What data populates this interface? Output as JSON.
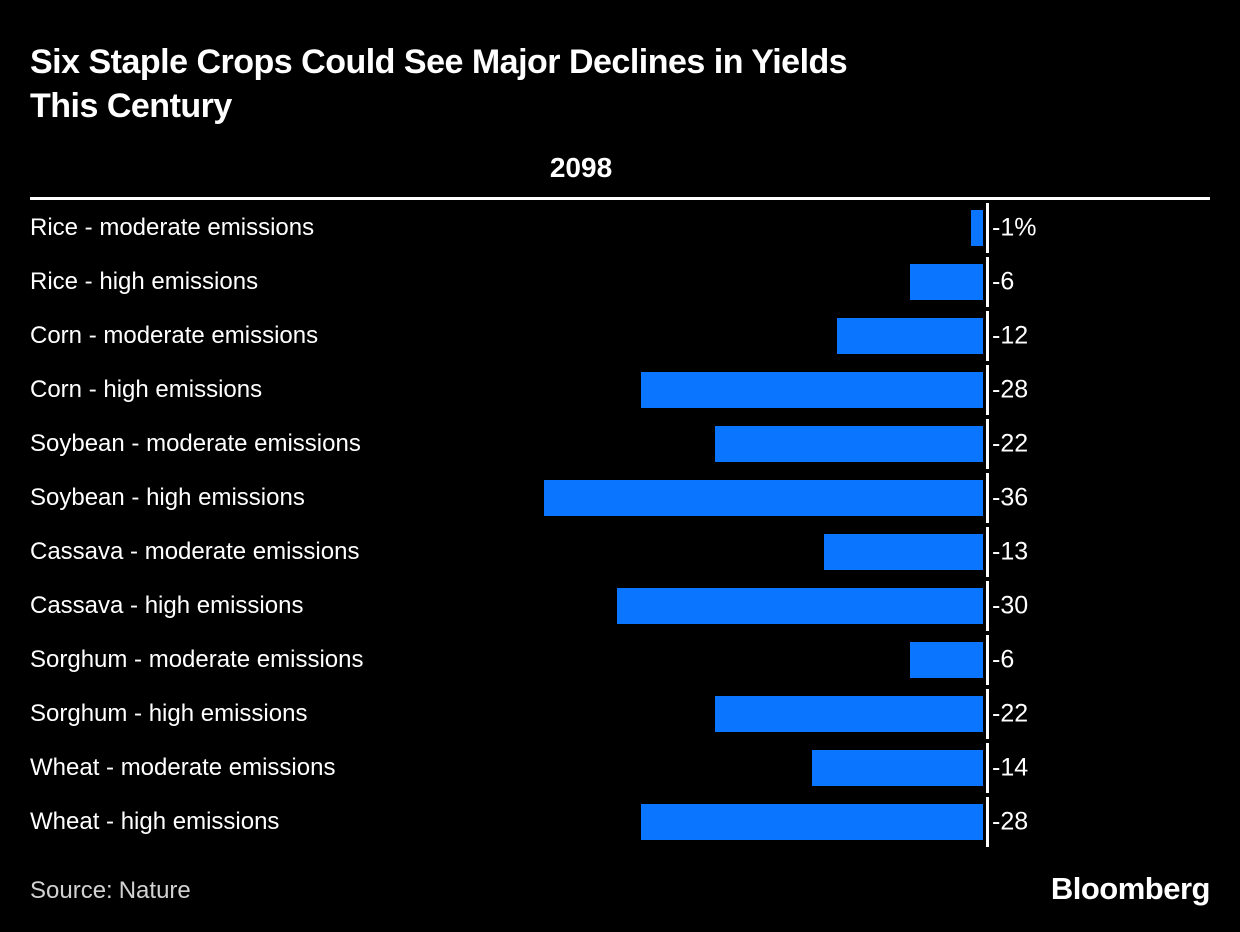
{
  "header": {
    "title_line1": "Six Staple Crops Could See Major Declines in Yields",
    "title_line2": "This Century",
    "column_header": "2098"
  },
  "footer": {
    "source_label": "Source:",
    "source_value": "Nature",
    "logo": "Bloomberg"
  },
  "colors": {
    "background": "#000000",
    "bar": "#0A76FF",
    "text": "#FFFFFF",
    "source_text": "#D2D2D2",
    "axis": "#FFFFFF"
  },
  "chart_data": {
    "type": "bar",
    "orientation": "horizontal",
    "title": "Six Staple Crops Could See Major Declines in Yields This Century",
    "column_header": "2098",
    "categories": [
      "Rice - moderate emissions",
      "Rice - high emissions",
      "Corn - moderate emissions",
      "Corn - high emissions",
      "Soybean - moderate emissions",
      "Soybean - high emissions",
      "Cassava - moderate emissions",
      "Cassava - high emissions",
      "Sorghum - moderate emissions",
      "Sorghum - high emissions",
      "Wheat - moderate emissions",
      "Wheat - high emissions"
    ],
    "values": [
      -1,
      -6,
      -12,
      -28,
      -22,
      -36,
      -13,
      -30,
      -6,
      -22,
      -14,
      -28
    ],
    "value_labels": [
      "-1%",
      "-6",
      "-12",
      "-28",
      "-22",
      "-36",
      "-13",
      "-30",
      "-6",
      "-22",
      "-14",
      "-28"
    ],
    "unit": "percent change in yield",
    "xlim": [
      -40,
      0
    ],
    "grid": false,
    "legend": false,
    "source": "Source: Nature"
  }
}
